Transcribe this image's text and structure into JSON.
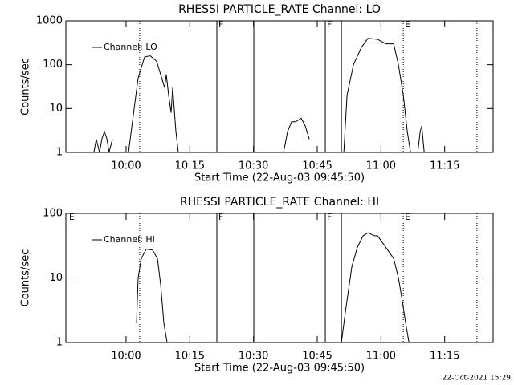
{
  "chart_data": [
    {
      "type": "line",
      "title": "RHESSI PARTICLE_RATE Channel: LO",
      "xlabel": "Start Time (22-Aug-03 09:45:50)",
      "ylabel": "Counts/sec",
      "x": [
        592.43,
        593.0,
        593.76,
        594.3,
        594.9,
        595.5,
        596.0,
        596.8,
        null,
        600.57,
        601.51,
        602.84,
        604.35,
        605.67,
        607.19,
        608.13,
        609.08,
        609.46,
        610.03,
        610.59,
        610.97,
        611.73,
        612.29,
        null,
        637.07,
        638.02,
        638.97,
        639.91,
        641.24,
        642.18,
        643.13,
        null,
        650.69,
        651.26,
        652.02,
        653.53,
        655.42,
        656.93,
        659.2,
        661.1,
        662.99,
        664.12,
        665.26,
        666.2,
        666.96,
        null,
        668.66,
        669.23,
        669.61,
        670.18
      ],
      "series": [
        {
          "name": "Channel: LO",
          "color": "#000000",
          "values": [
            1,
            2,
            1,
            2,
            3,
            2,
            1,
            2,
            null,
            1,
            5,
            50,
            150,
            160,
            120,
            60,
            30,
            60,
            20,
            8,
            30,
            3,
            1,
            null,
            1,
            3,
            5,
            5,
            6,
            4,
            2,
            null,
            1,
            1,
            20,
            100,
            250,
            400,
            380,
            300,
            300,
            100,
            20,
            3,
            1,
            null,
            1,
            3,
            4,
            1
          ]
        }
      ],
      "xlim": [
        585.83,
        686.4
      ],
      "xticks": [
        {
          "value": 600,
          "label": "10:00"
        },
        {
          "value": 615,
          "label": "10:15"
        },
        {
          "value": 630,
          "label": "10:30"
        },
        {
          "value": 645,
          "label": "10:45"
        },
        {
          "value": 660,
          "label": "11:00"
        },
        {
          "value": 675,
          "label": "11:15"
        }
      ],
      "ylim": [
        1,
        1000
      ],
      "yticks": [
        1,
        10,
        100,
        1000
      ],
      "log_y": true,
      "legend": "upper left",
      "flags": [
        {
          "x": 603.2,
          "style": "dotted"
        },
        {
          "x": 621.37,
          "style": "solid",
          "label": "F"
        },
        {
          "x": 630.07,
          "style": "solid"
        },
        {
          "x": 646.9,
          "style": "solid",
          "label": "F"
        },
        {
          "x": 650.69,
          "style": "solid"
        },
        {
          "x": 665.26,
          "style": "dotted",
          "label": "E"
        },
        {
          "x": 682.6,
          "style": "dotted"
        }
      ]
    },
    {
      "type": "line",
      "title": "RHESSI PARTICLE_RATE Channel: HI",
      "xlabel": "Start Time (22-Aug-03 09:45:50)",
      "ylabel": "Counts/sec",
      "x": [
        602.46,
        602.84,
        603.59,
        604.73,
        606.24,
        607.38,
        608.13,
        608.89,
        609.65,
        null,
        650.69,
        651.64,
        653.15,
        654.48,
        655.8,
        656.93,
        658.45,
        659.2,
        661.1,
        662.99,
        664.12,
        664.88,
        665.82,
        666.58
      ],
      "series": [
        {
          "name": "Channel: HI",
          "color": "#000000",
          "values": [
            2,
            10,
            20,
            28,
            27,
            20,
            8,
            2,
            1,
            null,
            1,
            3,
            15,
            30,
            45,
            50,
            45,
            45,
            30,
            20,
            10,
            5,
            2,
            1
          ]
        }
      ],
      "xlim": [
        585.83,
        686.4
      ],
      "xticks": [
        {
          "value": 600,
          "label": "10:00"
        },
        {
          "value": 615,
          "label": "10:15"
        },
        {
          "value": 630,
          "label": "10:30"
        },
        {
          "value": 645,
          "label": "10:45"
        },
        {
          "value": 660,
          "label": "11:00"
        },
        {
          "value": 675,
          "label": "11:15"
        }
      ],
      "ylim": [
        1,
        100
      ],
      "yticks": [
        1,
        10,
        100
      ],
      "log_y": true,
      "legend": "upper left",
      "flags": [
        {
          "x": 586.2,
          "style": "none",
          "label": "E"
        },
        {
          "x": 603.2,
          "style": "dotted"
        },
        {
          "x": 621.37,
          "style": "solid",
          "label": "F"
        },
        {
          "x": 630.07,
          "style": "solid"
        },
        {
          "x": 646.9,
          "style": "solid",
          "label": "F"
        },
        {
          "x": 650.69,
          "style": "solid"
        },
        {
          "x": 665.26,
          "style": "dotted",
          "label": "E"
        },
        {
          "x": 682.6,
          "style": "dotted"
        }
      ]
    }
  ],
  "footer": "22-Oct-2021 15:29"
}
